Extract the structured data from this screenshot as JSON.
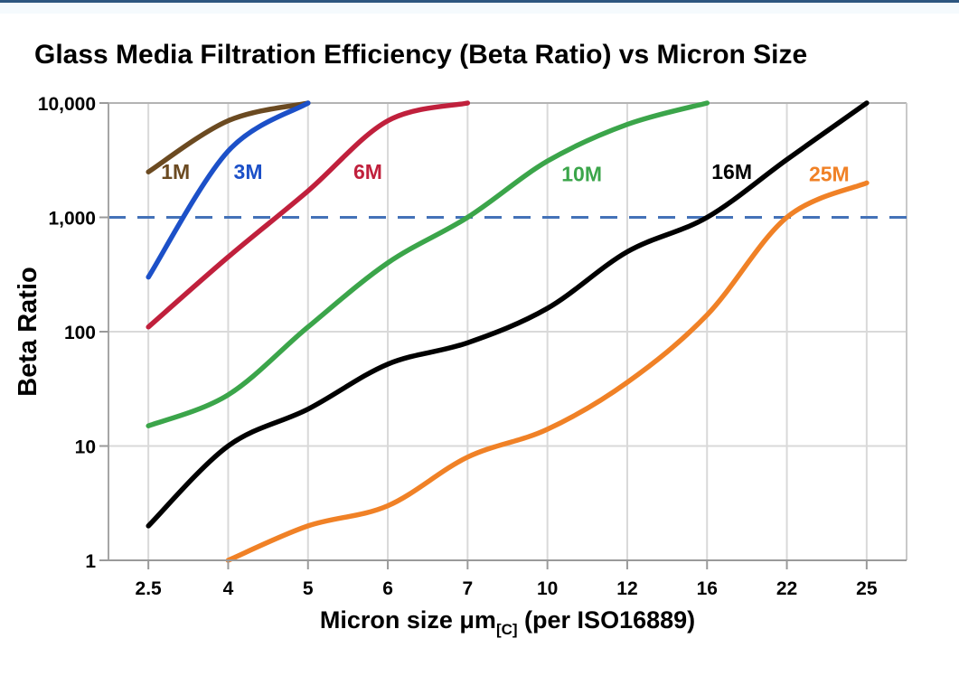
{
  "page": {
    "top_border_color": "#2d567f"
  },
  "chart_data": {
    "type": "line",
    "title": "Glass Media Filtration Efficiency (Beta Ratio) vs Micron Size",
    "xlabel_prefix": "Micron size μm",
    "xlabel_subscript": "[C]",
    "xlabel_suffix": " (per ISO16889)",
    "ylabel": "Beta Ratio",
    "x_categories": [
      "2.5",
      "4",
      "5",
      "6",
      "7",
      "10",
      "12",
      "16",
      "22",
      "25"
    ],
    "x_values": [
      2.5,
      4,
      5,
      6,
      7,
      10,
      12,
      16,
      22,
      25
    ],
    "y_scale": "log",
    "ylim": [
      1,
      10000
    ],
    "y_tick_values": [
      1,
      10,
      100,
      1000,
      10000
    ],
    "y_tick_labels": [
      "1",
      "10",
      "100",
      "1,000",
      "10,000"
    ],
    "grid": true,
    "grid_color": "#d9d9d9",
    "axis_color": "#9a9a9a",
    "reference_line": {
      "y": 1000,
      "style": "dashed",
      "color": "#4472b8"
    },
    "legend_position": "labels-on-chart",
    "series": [
      {
        "name": "1M",
        "color": "#6b4a21",
        "start_index": 0,
        "values": [
          2500,
          7000,
          10000
        ],
        "label_pos": [
          0.34,
          2500
        ]
      },
      {
        "name": "3M",
        "color": "#1c50c8",
        "start_index": 0,
        "values": [
          300,
          3800,
          10000
        ],
        "label_pos": [
          1.25,
          2500
        ]
      },
      {
        "name": "6M",
        "color": "#c0203c",
        "start_index": 0,
        "values": [
          110,
          450,
          1700,
          7000,
          10000
        ],
        "label_pos": [
          2.75,
          2500
        ]
      },
      {
        "name": "10M",
        "color": "#3ba54a",
        "start_index": 0,
        "values": [
          15,
          28,
          110,
          400,
          1000,
          3100,
          6500,
          10000
        ],
        "label_pos": [
          5.43,
          2400
        ]
      },
      {
        "name": "16M",
        "color": "#000000",
        "start_index": 0,
        "values": [
          2,
          10,
          21,
          52,
          80,
          160,
          500,
          1000,
          3200,
          10000
        ],
        "label_pos": [
          7.31,
          2500
        ]
      },
      {
        "name": "25M",
        "color": "#f08126",
        "start_index": 1,
        "values": [
          1,
          2,
          3,
          8,
          14,
          36,
          140,
          1000,
          2000
        ],
        "label_pos": [
          8.53,
          2400
        ]
      }
    ]
  }
}
